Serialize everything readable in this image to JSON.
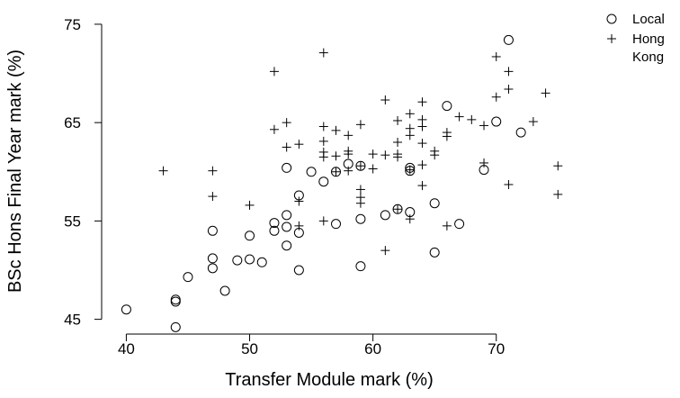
{
  "chart_data": {
    "type": "scatter",
    "title": "",
    "xlabel": "Transfer Module mark (%)",
    "ylabel": "BSc Hons Final Year mark (%)",
    "xlim": [
      38,
      76
    ],
    "ylim": [
      43.5,
      76
    ],
    "xticks": [
      40,
      50,
      60,
      70
    ],
    "yticks": [
      45,
      55,
      65,
      75
    ],
    "xtick_labels": [
      "40",
      "50",
      "60",
      "70"
    ],
    "ytick_labels": [
      "45",
      "55",
      "65",
      "75"
    ],
    "grid": false,
    "legend_position": "top-right outside",
    "series": [
      {
        "name": "Local",
        "marker": "circle",
        "points": [
          [
            40,
            46
          ],
          [
            44,
            44.2
          ],
          [
            44,
            46.8
          ],
          [
            44,
            47
          ],
          [
            45,
            49.3
          ],
          [
            47,
            50.2
          ],
          [
            47,
            51.2
          ],
          [
            47,
            54
          ],
          [
            48,
            47.9
          ],
          [
            49,
            51
          ],
          [
            50,
            51.1
          ],
          [
            50,
            53.5
          ],
          [
            51,
            50.8
          ],
          [
            52,
            54
          ],
          [
            52,
            54.8
          ],
          [
            53,
            52.5
          ],
          [
            53,
            54.4
          ],
          [
            53,
            55.6
          ],
          [
            53,
            60.4
          ],
          [
            54,
            50
          ],
          [
            54,
            53.8
          ],
          [
            54,
            57.6
          ],
          [
            55,
            60
          ],
          [
            56,
            59
          ],
          [
            57,
            54.7
          ],
          [
            57,
            60
          ],
          [
            58,
            60.8
          ],
          [
            59,
            50.4
          ],
          [
            59,
            55.2
          ],
          [
            59,
            60.6
          ],
          [
            61,
            55.6
          ],
          [
            62,
            56.2
          ],
          [
            63,
            55.9
          ],
          [
            63,
            60.1
          ],
          [
            63,
            60.4
          ],
          [
            65,
            51.8
          ],
          [
            65,
            56.8
          ],
          [
            66,
            66.7
          ],
          [
            67,
            54.7
          ],
          [
            69,
            60.2
          ],
          [
            70,
            65.1
          ],
          [
            71,
            73.4
          ],
          [
            72,
            64
          ]
        ]
      },
      {
        "name": "Hong Kong",
        "marker": "plus",
        "points": [
          [
            43,
            60.1
          ],
          [
            47,
            57.5
          ],
          [
            47,
            60.1
          ],
          [
            50,
            56.6
          ],
          [
            52,
            64.3
          ],
          [
            52,
            70.2
          ],
          [
            53,
            62.5
          ],
          [
            53,
            65
          ],
          [
            54,
            54.5
          ],
          [
            54,
            57
          ],
          [
            54,
            62.8
          ],
          [
            56,
            55
          ],
          [
            56,
            61.5
          ],
          [
            56,
            62
          ],
          [
            56,
            63.1
          ],
          [
            56,
            64.6
          ],
          [
            56,
            72.1
          ],
          [
            57,
            60
          ],
          [
            57,
            61.6
          ],
          [
            57,
            64.2
          ],
          [
            58,
            60.1
          ],
          [
            58,
            61.8
          ],
          [
            58,
            62.1
          ],
          [
            58,
            63.7
          ],
          [
            59,
            56.8
          ],
          [
            59,
            57.4
          ],
          [
            59,
            58.2
          ],
          [
            59,
            60.6
          ],
          [
            59,
            64.8
          ],
          [
            60,
            60.3
          ],
          [
            60,
            61.8
          ],
          [
            61,
            52
          ],
          [
            61,
            61.7
          ],
          [
            61,
            67.3
          ],
          [
            62,
            56.2
          ],
          [
            62,
            61.5
          ],
          [
            62,
            61.8
          ],
          [
            62,
            63
          ],
          [
            62,
            65.2
          ],
          [
            63,
            55.2
          ],
          [
            63,
            60.2
          ],
          [
            63,
            63.7
          ],
          [
            63,
            64.4
          ],
          [
            63,
            65.9
          ],
          [
            64,
            58.6
          ],
          [
            64,
            60.7
          ],
          [
            64,
            62.9
          ],
          [
            64,
            64.6
          ],
          [
            64,
            65.3
          ],
          [
            64,
            67.1
          ],
          [
            65,
            61.7
          ],
          [
            65,
            62.1
          ],
          [
            66,
            54.5
          ],
          [
            66,
            63.6
          ],
          [
            66,
            64
          ],
          [
            67,
            65.6
          ],
          [
            68,
            65.3
          ],
          [
            69,
            60.9
          ],
          [
            69,
            64.7
          ],
          [
            70,
            67.6
          ],
          [
            70,
            71.7
          ],
          [
            71,
            58.7
          ],
          [
            71,
            68.4
          ],
          [
            71,
            70.2
          ],
          [
            73,
            65.1
          ],
          [
            74,
            68
          ],
          [
            75,
            57.7
          ],
          [
            75,
            60.6
          ]
        ]
      }
    ]
  },
  "legend": {
    "items": [
      {
        "marker": "circle",
        "lines": [
          "Local"
        ]
      },
      {
        "marker": "plus",
        "lines": [
          "Hong",
          "Kong"
        ]
      }
    ]
  }
}
